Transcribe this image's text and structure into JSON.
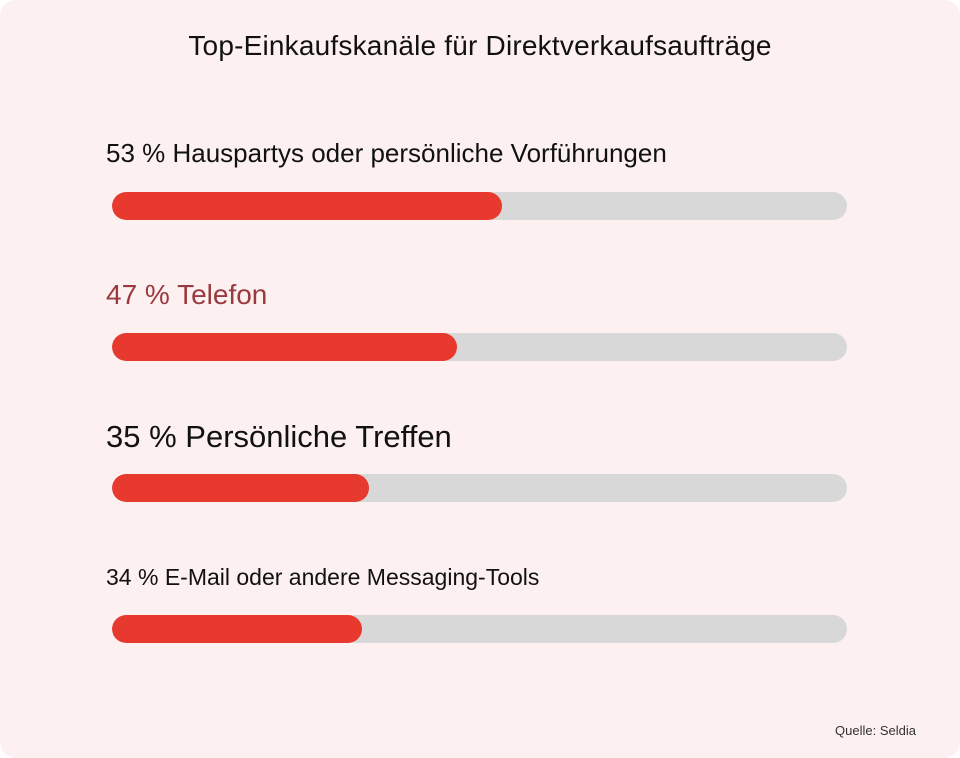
{
  "chart_data": {
    "type": "bar",
    "orientation": "horizontal",
    "title": "Top-Einkaufskanäle für Direktverkaufsaufträge",
    "categories": [
      "53 % Hauspartys oder persönliche Vorführungen",
      "47 % Telefon",
      "35 % Persönliche Treffen",
      "34 % E-Mail oder andere Messaging-Tools"
    ],
    "values": [
      53,
      47,
      35,
      34
    ],
    "xlim": [
      0,
      100
    ],
    "unit": "%",
    "bar_color": "#e8392e",
    "track_color": "#d9d8d8",
    "label_colors": [
      "#111111",
      "#9b3a3e",
      "#111111",
      "#111111"
    ],
    "grid": false,
    "legend": "none",
    "source": "Quelle: Seldia"
  }
}
